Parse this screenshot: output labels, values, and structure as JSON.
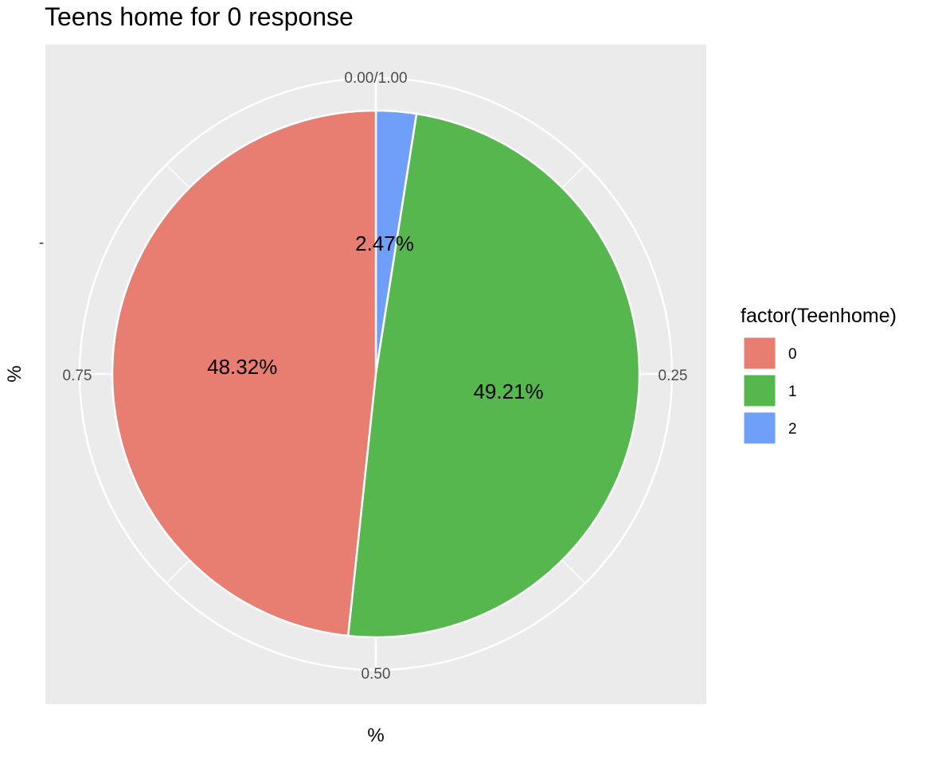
{
  "chart_data": {
    "type": "pie",
    "title": "Teens home for 0 response",
    "xlabel": "%",
    "ylabel": "%",
    "y_tick": "-",
    "theta_ticks": [
      "0.00/1.00",
      "0.25",
      "0.50",
      "0.75"
    ],
    "theta_tick_values": [
      0,
      0.25,
      0.5,
      0.75
    ],
    "categories": [
      "0",
      "1",
      "2"
    ],
    "values": [
      0.4832,
      0.4921,
      0.0247
    ],
    "labels": [
      "48.32%",
      "49.21%",
      "2.47%"
    ],
    "colors": [
      "#E87E72",
      "#56B74E",
      "#6F9FF8"
    ],
    "legend": {
      "title": "factor(Teenhome)",
      "position": "right"
    },
    "panel_background": "#EBEBEB",
    "grid": true
  }
}
